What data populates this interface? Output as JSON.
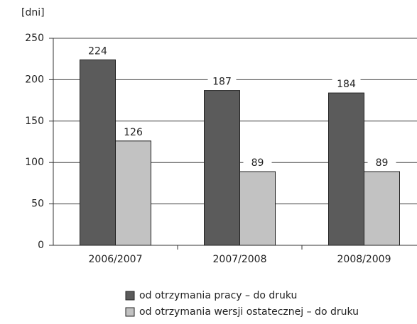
{
  "chart_data": {
    "type": "bar",
    "y_label": "[dni]",
    "categories": [
      "2006/2007",
      "2007/2008",
      "2008/2009"
    ],
    "series": [
      {
        "name": "od otrzymania pracy – do druku",
        "color": "#5b5b5b",
        "values": [
          224,
          187,
          184
        ]
      },
      {
        "name": "od otrzymania wersji ostatecznej – do druku",
        "color": "#c2c2c2",
        "values": [
          126,
          89,
          89
        ]
      }
    ],
    "ylim": [
      0,
      250
    ],
    "yticks": [
      0,
      50,
      100,
      150,
      200,
      250
    ],
    "grid": true,
    "legend": "bottom"
  }
}
